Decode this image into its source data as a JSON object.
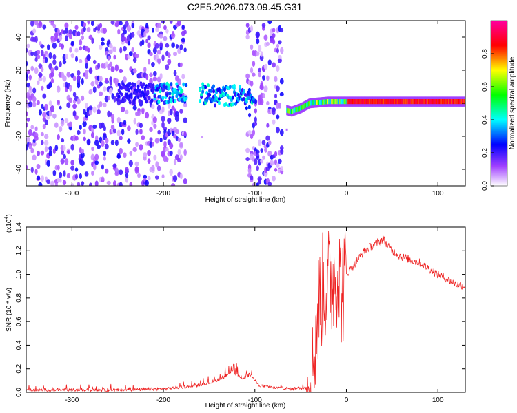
{
  "title": "C2E5.2026.073.09.45.G31",
  "chart_data": [
    {
      "type": "heatmap",
      "xlabel": "Height of straight line (km)",
      "ylabel": "Frequency (Hz)",
      "xlim": [
        -350,
        130
      ],
      "ylim": [
        -50,
        50
      ],
      "xticks": [
        -300,
        -200,
        -100,
        0,
        100
      ],
      "yticks": [
        -40,
        -20,
        0,
        20,
        40
      ],
      "colorbar": {
        "label": "Normalized spectral amplitude",
        "range": [
          0.0,
          1.0
        ],
        "ticks": [
          "0.0",
          "0.2",
          "0.4",
          "0.6",
          "0.8"
        ],
        "tick_values": [
          0.0,
          0.2,
          0.4,
          0.6,
          0.8
        ],
        "colors": [
          "#ffffff",
          "#a040ff",
          "#0000ff",
          "#00ffff",
          "#00ff00",
          "#ffff00",
          "#ff0000",
          "#ff00a0"
        ]
      },
      "features": {
        "noise_band_x": [
          -350,
          -60
        ],
        "gaps_x": [
          [
            -175,
            -110
          ],
          [
            -70,
            -60
          ]
        ],
        "signal_track": [
          {
            "x": -200,
            "f": 6
          },
          {
            "x": -180,
            "f": 7
          },
          {
            "x": -160,
            "f": 6
          },
          {
            "x": -140,
            "f": 4
          },
          {
            "x": -120,
            "f": 5
          },
          {
            "x": -105,
            "f": 2
          },
          {
            "x": -60,
            "f": -5
          },
          {
            "x": -50,
            "f": -3
          },
          {
            "x": -40,
            "f": 0
          },
          {
            "x": -20,
            "f": 1
          },
          {
            "x": 0,
            "f": 1
          },
          {
            "x": 50,
            "f": 1
          },
          {
            "x": 100,
            "f": 1
          },
          {
            "x": 130,
            "f": 1
          }
        ],
        "max_amplitude_region_x": [
          0,
          130
        ]
      }
    },
    {
      "type": "line",
      "xlabel": "Height of straight line (km)",
      "ylabel": "SNR (10 * v/v)",
      "y_multiplier": "(x10",
      "y_multiplier_exp": "4",
      "y_multiplier_close": ")",
      "xlim": [
        -350,
        130
      ],
      "ylim": [
        0.0,
        1.4
      ],
      "xticks": [
        -300,
        -200,
        -100,
        0,
        100
      ],
      "yticks": [
        "0.0",
        "0.2",
        "0.4",
        "0.6",
        "0.8",
        "1.0",
        "1.2",
        "1.4"
      ],
      "ytick_values": [
        0.0,
        0.2,
        0.4,
        0.6,
        0.8,
        1.0,
        1.2,
        1.4
      ],
      "line_color": "#ee2222",
      "series": [
        {
          "name": "SNR",
          "x": [
            -350,
            -300,
            -250,
            -200,
            -170,
            -150,
            -135,
            -125,
            -115,
            -105,
            -95,
            -80,
            -60,
            -45,
            -38,
            -33,
            -28,
            -22,
            -15,
            -10,
            -5,
            0,
            10,
            20,
            30,
            40,
            50,
            60,
            80,
            100,
            120,
            130
          ],
          "y": [
            0.02,
            0.02,
            0.02,
            0.03,
            0.05,
            0.08,
            0.12,
            0.18,
            0.12,
            0.14,
            0.06,
            0.04,
            0.03,
            0.04,
            0.15,
            0.55,
            0.85,
            0.9,
            0.95,
            1.05,
            0.85,
            1.0,
            1.1,
            1.2,
            1.25,
            1.3,
            1.2,
            1.15,
            1.1,
            1.0,
            0.92,
            0.9
          ]
        }
      ]
    }
  ]
}
